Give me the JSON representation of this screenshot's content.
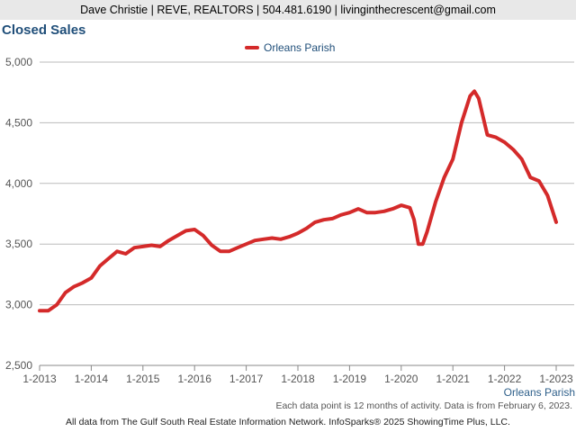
{
  "header": {
    "contact": "Dave Christie | REVE, REALTORS | 504.481.6190 | livinginthecrescent@gmail.com"
  },
  "chart_data": {
    "type": "line",
    "title": "Closed Sales",
    "legend": {
      "position": "top-center",
      "entries": [
        "Orleans Parish"
      ]
    },
    "grid": true,
    "ylim": [
      2500,
      5000
    ],
    "yticks": [
      "2,500",
      "3,000",
      "3,500",
      "4,000",
      "4,500",
      "5,000"
    ],
    "yticks_values": [
      2500,
      3000,
      3500,
      4000,
      4500,
      5000
    ],
    "xticks": [
      "1-2013",
      "1-2014",
      "1-2015",
      "1-2016",
      "1-2017",
      "1-2018",
      "1-2019",
      "1-2020",
      "1-2021",
      "1-2022",
      "1-2023"
    ],
    "x_axis_series_label": "Orleans Parish",
    "series": [
      {
        "name": "Orleans Parish",
        "color": "#d42a2a",
        "x": [
          "2013-01",
          "2013-03",
          "2013-05",
          "2013-07",
          "2013-09",
          "2013-11",
          "2014-01",
          "2014-03",
          "2014-05",
          "2014-07",
          "2014-09",
          "2014-11",
          "2015-01",
          "2015-03",
          "2015-05",
          "2015-07",
          "2015-09",
          "2015-11",
          "2016-01",
          "2016-03",
          "2016-05",
          "2016-07",
          "2016-09",
          "2016-11",
          "2017-01",
          "2017-03",
          "2017-05",
          "2017-07",
          "2017-09",
          "2017-11",
          "2018-01",
          "2018-03",
          "2018-05",
          "2018-07",
          "2018-09",
          "2018-11",
          "2019-01",
          "2019-03",
          "2019-05",
          "2019-07",
          "2019-09",
          "2019-11",
          "2020-01",
          "2020-03",
          "2020-04",
          "2020-05",
          "2020-06",
          "2020-07",
          "2020-09",
          "2020-11",
          "2021-01",
          "2021-03",
          "2021-05",
          "2021-06",
          "2021-07",
          "2021-09",
          "2021-11",
          "2022-01",
          "2022-03",
          "2022-05",
          "2022-07",
          "2022-09",
          "2022-11",
          "2023-01"
        ],
        "values": [
          2950,
          2950,
          3000,
          3100,
          3150,
          3180,
          3220,
          3320,
          3380,
          3440,
          3420,
          3470,
          3480,
          3490,
          3480,
          3530,
          3570,
          3610,
          3620,
          3570,
          3490,
          3440,
          3440,
          3470,
          3500,
          3530,
          3540,
          3550,
          3540,
          3560,
          3590,
          3630,
          3680,
          3700,
          3710,
          3740,
          3760,
          3790,
          3760,
          3760,
          3770,
          3790,
          3820,
          3800,
          3700,
          3500,
          3500,
          3600,
          3850,
          4050,
          4200,
          4500,
          4720,
          4760,
          4700,
          4400,
          4380,
          4340,
          4280,
          4200,
          4050,
          4020,
          3900,
          3680
        ]
      }
    ]
  },
  "footer": {
    "note": "Each data point is 12 months of activity. Data is from February 6, 2023.",
    "credit": "All data from The Gulf South Real Estate Information Network. InfoSparks® 2025 ShowingTime Plus, LLC."
  }
}
